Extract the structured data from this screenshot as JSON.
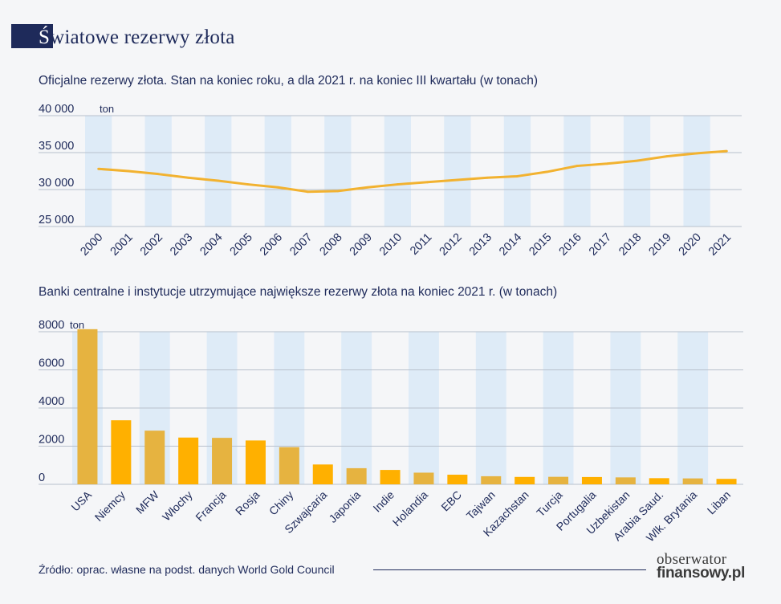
{
  "page": {
    "title_first": "Ś",
    "title_rest": "wiatowe rezerwy złota",
    "source": "Źródło: oprac. własne na podst. danych World Gold Council",
    "logo_line1": "obserwator",
    "logo_line2": "finansowy.pl",
    "colors": {
      "navy": "#1e2a5a",
      "band": "#deebf7",
      "line": "#f2b230",
      "bar_gold": "#e6b340",
      "bar_orange": "#ffb000"
    }
  },
  "chart_data": [
    {
      "type": "line",
      "title": "Oficjalne rezerwy złota. Stan na koniec roku, a dla 2021 r. na koniec III kwartału (w tonach)",
      "unit_label": "ton",
      "categories": [
        "2000",
        "2001",
        "2002",
        "2003",
        "2004",
        "2005",
        "2006",
        "2007",
        "2008",
        "2009",
        "2010",
        "2011",
        "2012",
        "2013",
        "2014",
        "2015",
        "2016",
        "2017",
        "2018",
        "2019",
        "2020",
        "2021"
      ],
      "values": [
        32800,
        32500,
        32100,
        31600,
        31200,
        30700,
        30300,
        29700,
        29800,
        30300,
        30700,
        31000,
        31300,
        31600,
        31800,
        32400,
        33200,
        33500,
        33900,
        34500,
        34900,
        35200
      ],
      "ylim": [
        25000,
        40000
      ],
      "yticks": [
        25000,
        30000,
        35000,
        40000
      ],
      "ytick_labels": [
        "25 000",
        "30 000",
        "35 000",
        "40 000"
      ]
    },
    {
      "type": "bar",
      "title": "Banki centralne i instytucje utrzymujące największe rezerwy złota na koniec 2021 r. (w tonach)",
      "unit_label": "ton",
      "categories": [
        "USA",
        "Niemcy",
        "MFW",
        "Włochy",
        "Francja",
        "Rosja",
        "Chiny",
        "Szwajcaria",
        "Japonia",
        "Indie",
        "Holandia",
        "EBC",
        "Tajwan",
        "Kazachstan",
        "Turcja",
        "Portugalia",
        "Uzbekistan",
        "Arabia Saud.",
        "Wlk. Brytania",
        "Liban"
      ],
      "values": [
        8133,
        3359,
        2814,
        2452,
        2436,
        2299,
        1948,
        1040,
        846,
        754,
        612,
        505,
        424,
        388,
        394,
        383,
        364,
        323,
        310,
        287
      ],
      "ylim": [
        0,
        8000
      ],
      "yticks": [
        0,
        2000,
        4000,
        6000,
        8000
      ],
      "ytick_labels": [
        "0",
        "2000",
        "4000",
        "6000",
        "8000"
      ]
    }
  ]
}
